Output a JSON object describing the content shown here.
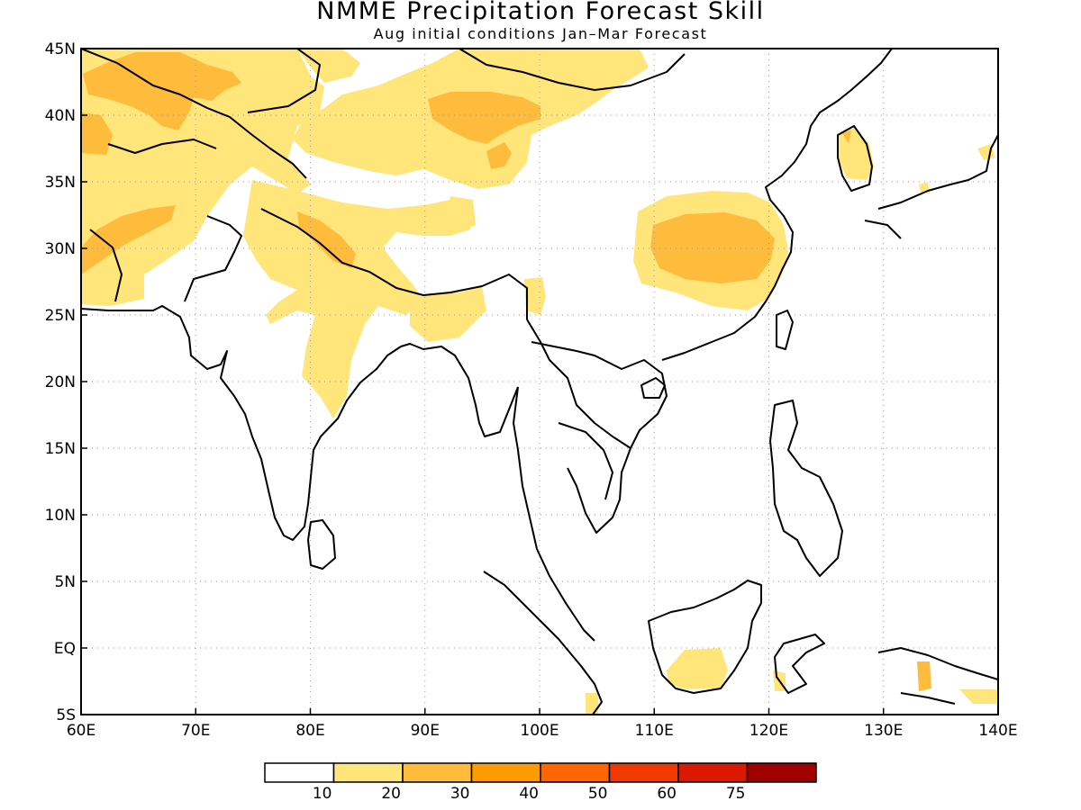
{
  "title": "NMME Precipitation Forecast Skill",
  "subtitle": "Aug initial conditions  Jan–Mar Forecast",
  "map": {
    "lon_range": [
      60,
      140
    ],
    "lat_range": [
      -5,
      45
    ],
    "grid": "dotted",
    "x_ticks": [
      "60E",
      "70E",
      "80E",
      "90E",
      "100E",
      "110E",
      "120E",
      "130E",
      "140E"
    ],
    "y_ticks": [
      "5S",
      "EQ",
      "5N",
      "10N",
      "15N",
      "20N",
      "25N",
      "30N",
      "35N",
      "40N",
      "45N"
    ],
    "shading_colors": {
      "level1": "#ffe57a",
      "level2": "#ffbb3c"
    }
  },
  "colorbar": {
    "colors": [
      "#ffffff",
      "#ffe57a",
      "#ffbb3c",
      "#ff9a00",
      "#ff6600",
      "#f23a00",
      "#dc1800",
      "#a10000"
    ],
    "labels": [
      "10",
      "20",
      "30",
      "40",
      "50",
      "60",
      "75"
    ]
  }
}
